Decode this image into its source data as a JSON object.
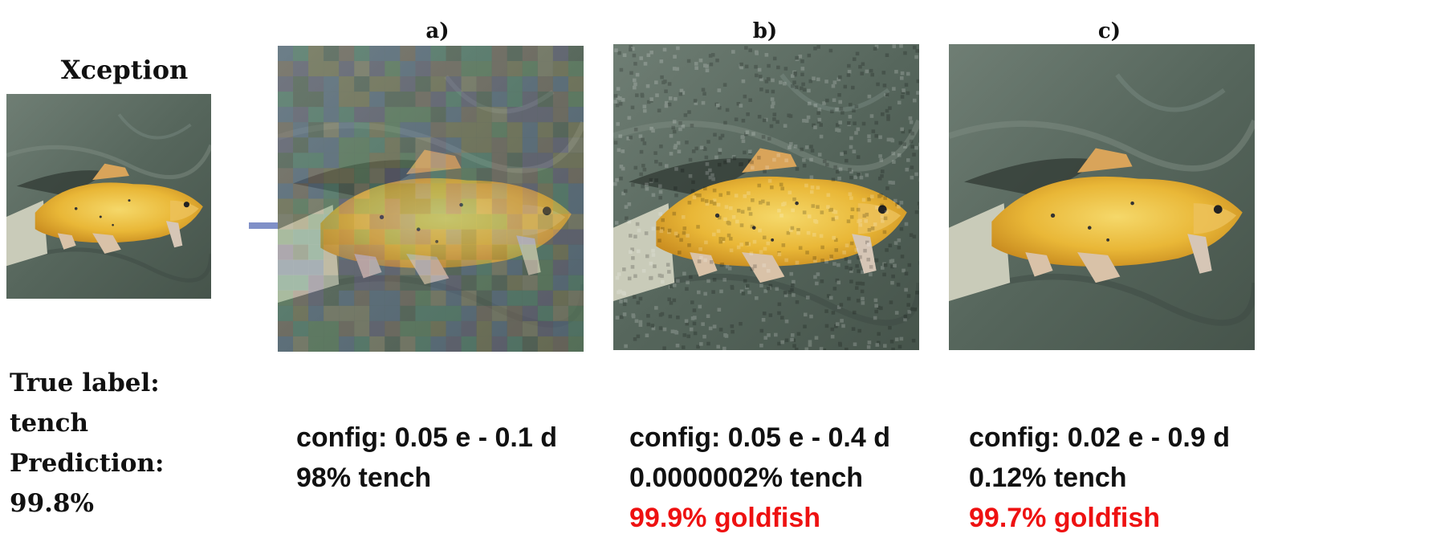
{
  "model": "Xception",
  "original": {
    "true_label_heading": "True label:",
    "true_label": "tench",
    "prediction_heading": "Prediction:",
    "prediction": "99.8%"
  },
  "panels": [
    {
      "label": "a)",
      "config": "config: 0.05 e - 0.1 d",
      "line1": "98% tench",
      "line2": ""
    },
    {
      "label": "b)",
      "config": "config: 0.05 e - 0.4 d",
      "line1": "0.0000002% tench",
      "line2": "99.9% goldfish"
    },
    {
      "label": "c)",
      "config": "config: 0.02 e - 0.9 d",
      "line1": "0.12% tench",
      "line2": "99.7% goldfish"
    }
  ],
  "colors": {
    "adversarial_prediction": "#ee1111",
    "arrow": "#8090c8"
  }
}
